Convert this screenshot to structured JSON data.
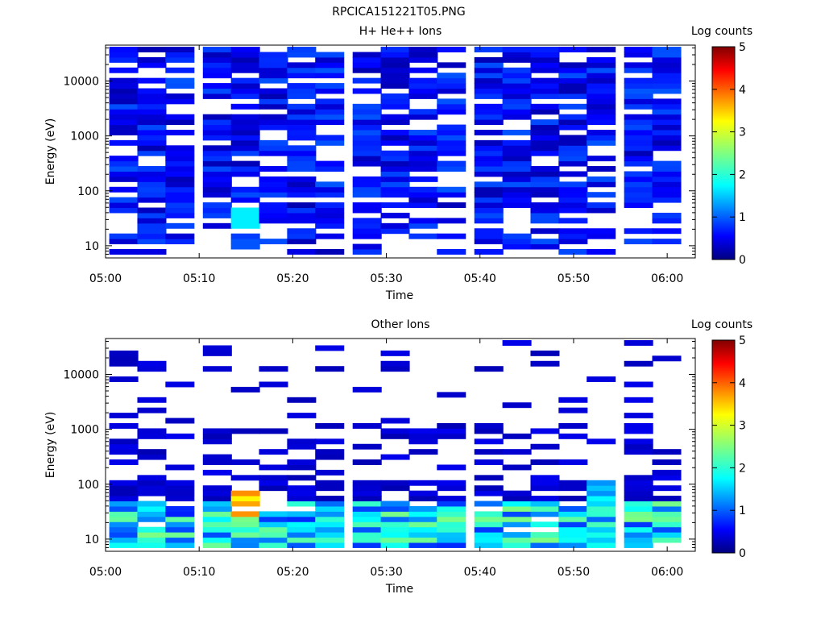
{
  "figure_title": "RPCICA151221T05.PNG",
  "chart_data": [
    {
      "type": "heatmap",
      "title": "H+ He++ Ions",
      "xlabel": "Time",
      "ylabel": "Energy (eV)",
      "y_scale": "log",
      "ylim": [
        6,
        45000
      ],
      "xlim": [
        "05:00",
        "06:03"
      ],
      "x_ticks": [
        "05:00",
        "05:10",
        "05:20",
        "05:30",
        "05:40",
        "05:50",
        "06:00"
      ],
      "y_ticks": [
        "10",
        "100",
        "1000",
        "10000"
      ],
      "colorbar": {
        "label": "Log counts",
        "range": [
          0,
          5
        ],
        "ticks": [
          "0",
          "1",
          "2",
          "3",
          "4",
          "5"
        ]
      },
      "time_bins": [
        "05:01",
        "05:04",
        "05:07",
        "05:11",
        "05:14",
        "05:17",
        "05:20",
        "05:23",
        "05:27",
        "05:30",
        "05:33",
        "05:36",
        "05:40",
        "05:43",
        "05:46",
        "05:49",
        "05:52",
        "05:56",
        "05:59"
      ],
      "description_of_values": "log counts per time/energy cell; mostly 0.1-0.8 across 10-40000 eV with gaps; a cyan patch (~1.8) near 30 eV at 05:14"
    },
    {
      "type": "heatmap",
      "title": "Other Ions",
      "xlabel": "Time",
      "ylabel": "Energy (eV)",
      "y_scale": "log",
      "ylim": [
        6,
        45000
      ],
      "xlim": [
        "05:00",
        "06:03"
      ],
      "x_ticks": [
        "05:00",
        "05:10",
        "05:20",
        "05:30",
        "05:40",
        "05:50",
        "06:00"
      ],
      "y_ticks": [
        "10",
        "100",
        "1000",
        "10000"
      ],
      "colorbar": {
        "label": "Log counts",
        "range": [
          0,
          5
        ],
        "ticks": [
          "0",
          "1",
          "2",
          "3",
          "4",
          "5"
        ]
      },
      "time_bins": [
        "05:01",
        "05:04",
        "05:07",
        "05:11",
        "05:14",
        "05:17",
        "05:20",
        "05:23",
        "05:27",
        "05:30",
        "05:33",
        "05:36",
        "05:40",
        "05:43",
        "05:46",
        "05:49",
        "05:52",
        "05:56",
        "05:59"
      ],
      "description_of_values": "highest counts (log ~3.6) near 30-40 eV at 05:14; 2-3 levels near 20-30 eV at 05:17-05:36; sparse low-level points above 100 eV"
    }
  ]
}
